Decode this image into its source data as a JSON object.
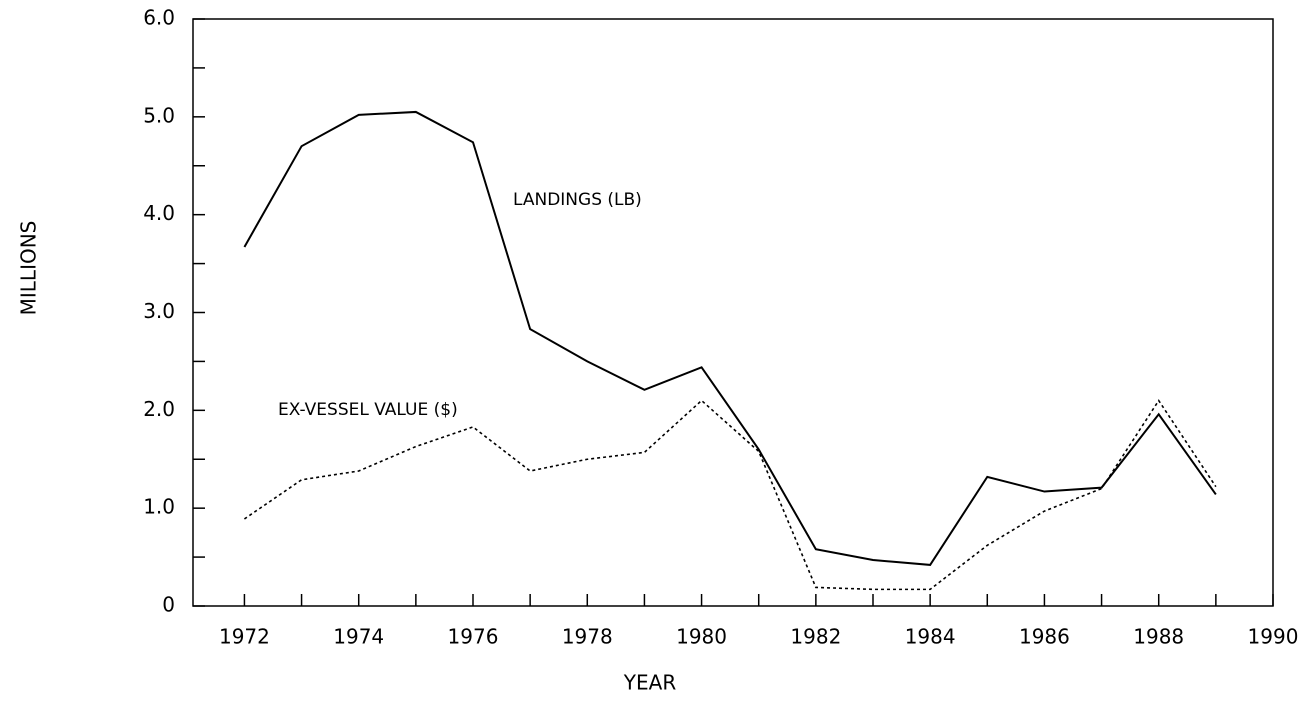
{
  "chart_data": {
    "type": "line",
    "xlabel": "YEAR",
    "ylabel": "MILLIONS",
    "x": [
      1972,
      1973,
      1974,
      1975,
      1976,
      1977,
      1978,
      1979,
      1980,
      1981,
      1982,
      1983,
      1984,
      1985,
      1986,
      1987,
      1988,
      1989
    ],
    "series": [
      {
        "name": "LANDINGS (LB)",
        "color": "#000000",
        "style": "solid",
        "values": [
          3.67,
          4.7,
          5.02,
          5.05,
          4.74,
          2.83,
          2.5,
          2.21,
          2.44,
          1.6,
          0.58,
          0.47,
          0.42,
          1.32,
          1.17,
          1.21,
          1.96,
          1.14
        ]
      },
      {
        "name": "EX-VESSEL VALUE ($)",
        "color": "#000000",
        "style": "dotted",
        "values": [
          0.89,
          1.29,
          1.38,
          1.63,
          1.83,
          1.38,
          1.5,
          1.57,
          2.1,
          1.58,
          0.19,
          0.17,
          0.17,
          0.62,
          0.97,
          1.2,
          2.1,
          1.22
        ]
      }
    ],
    "xlim": [
      1971.1,
      1990
    ],
    "xticks": [
      1972,
      1974,
      1976,
      1978,
      1980,
      1982,
      1984,
      1986,
      1988,
      1990
    ],
    "xminor_ticks": [
      1973,
      1975,
      1977,
      1979,
      1981,
      1983,
      1985,
      1987,
      1989
    ],
    "ylim": [
      0,
      6
    ],
    "yticks": [
      0,
      {
        "value": 1,
        "label": "1.0"
      },
      {
        "value": 2,
        "label": "2.0"
      },
      {
        "value": 3,
        "label": "3.0"
      },
      {
        "value": 4,
        "label": "4.0"
      },
      {
        "value": 5,
        "label": "5.0"
      },
      {
        "value": 6,
        "label": "6.0"
      }
    ],
    "yminor_ticks": [
      0.5,
      1.5,
      2.5,
      3.5,
      4.5,
      5.5
    ],
    "grid": false
  }
}
